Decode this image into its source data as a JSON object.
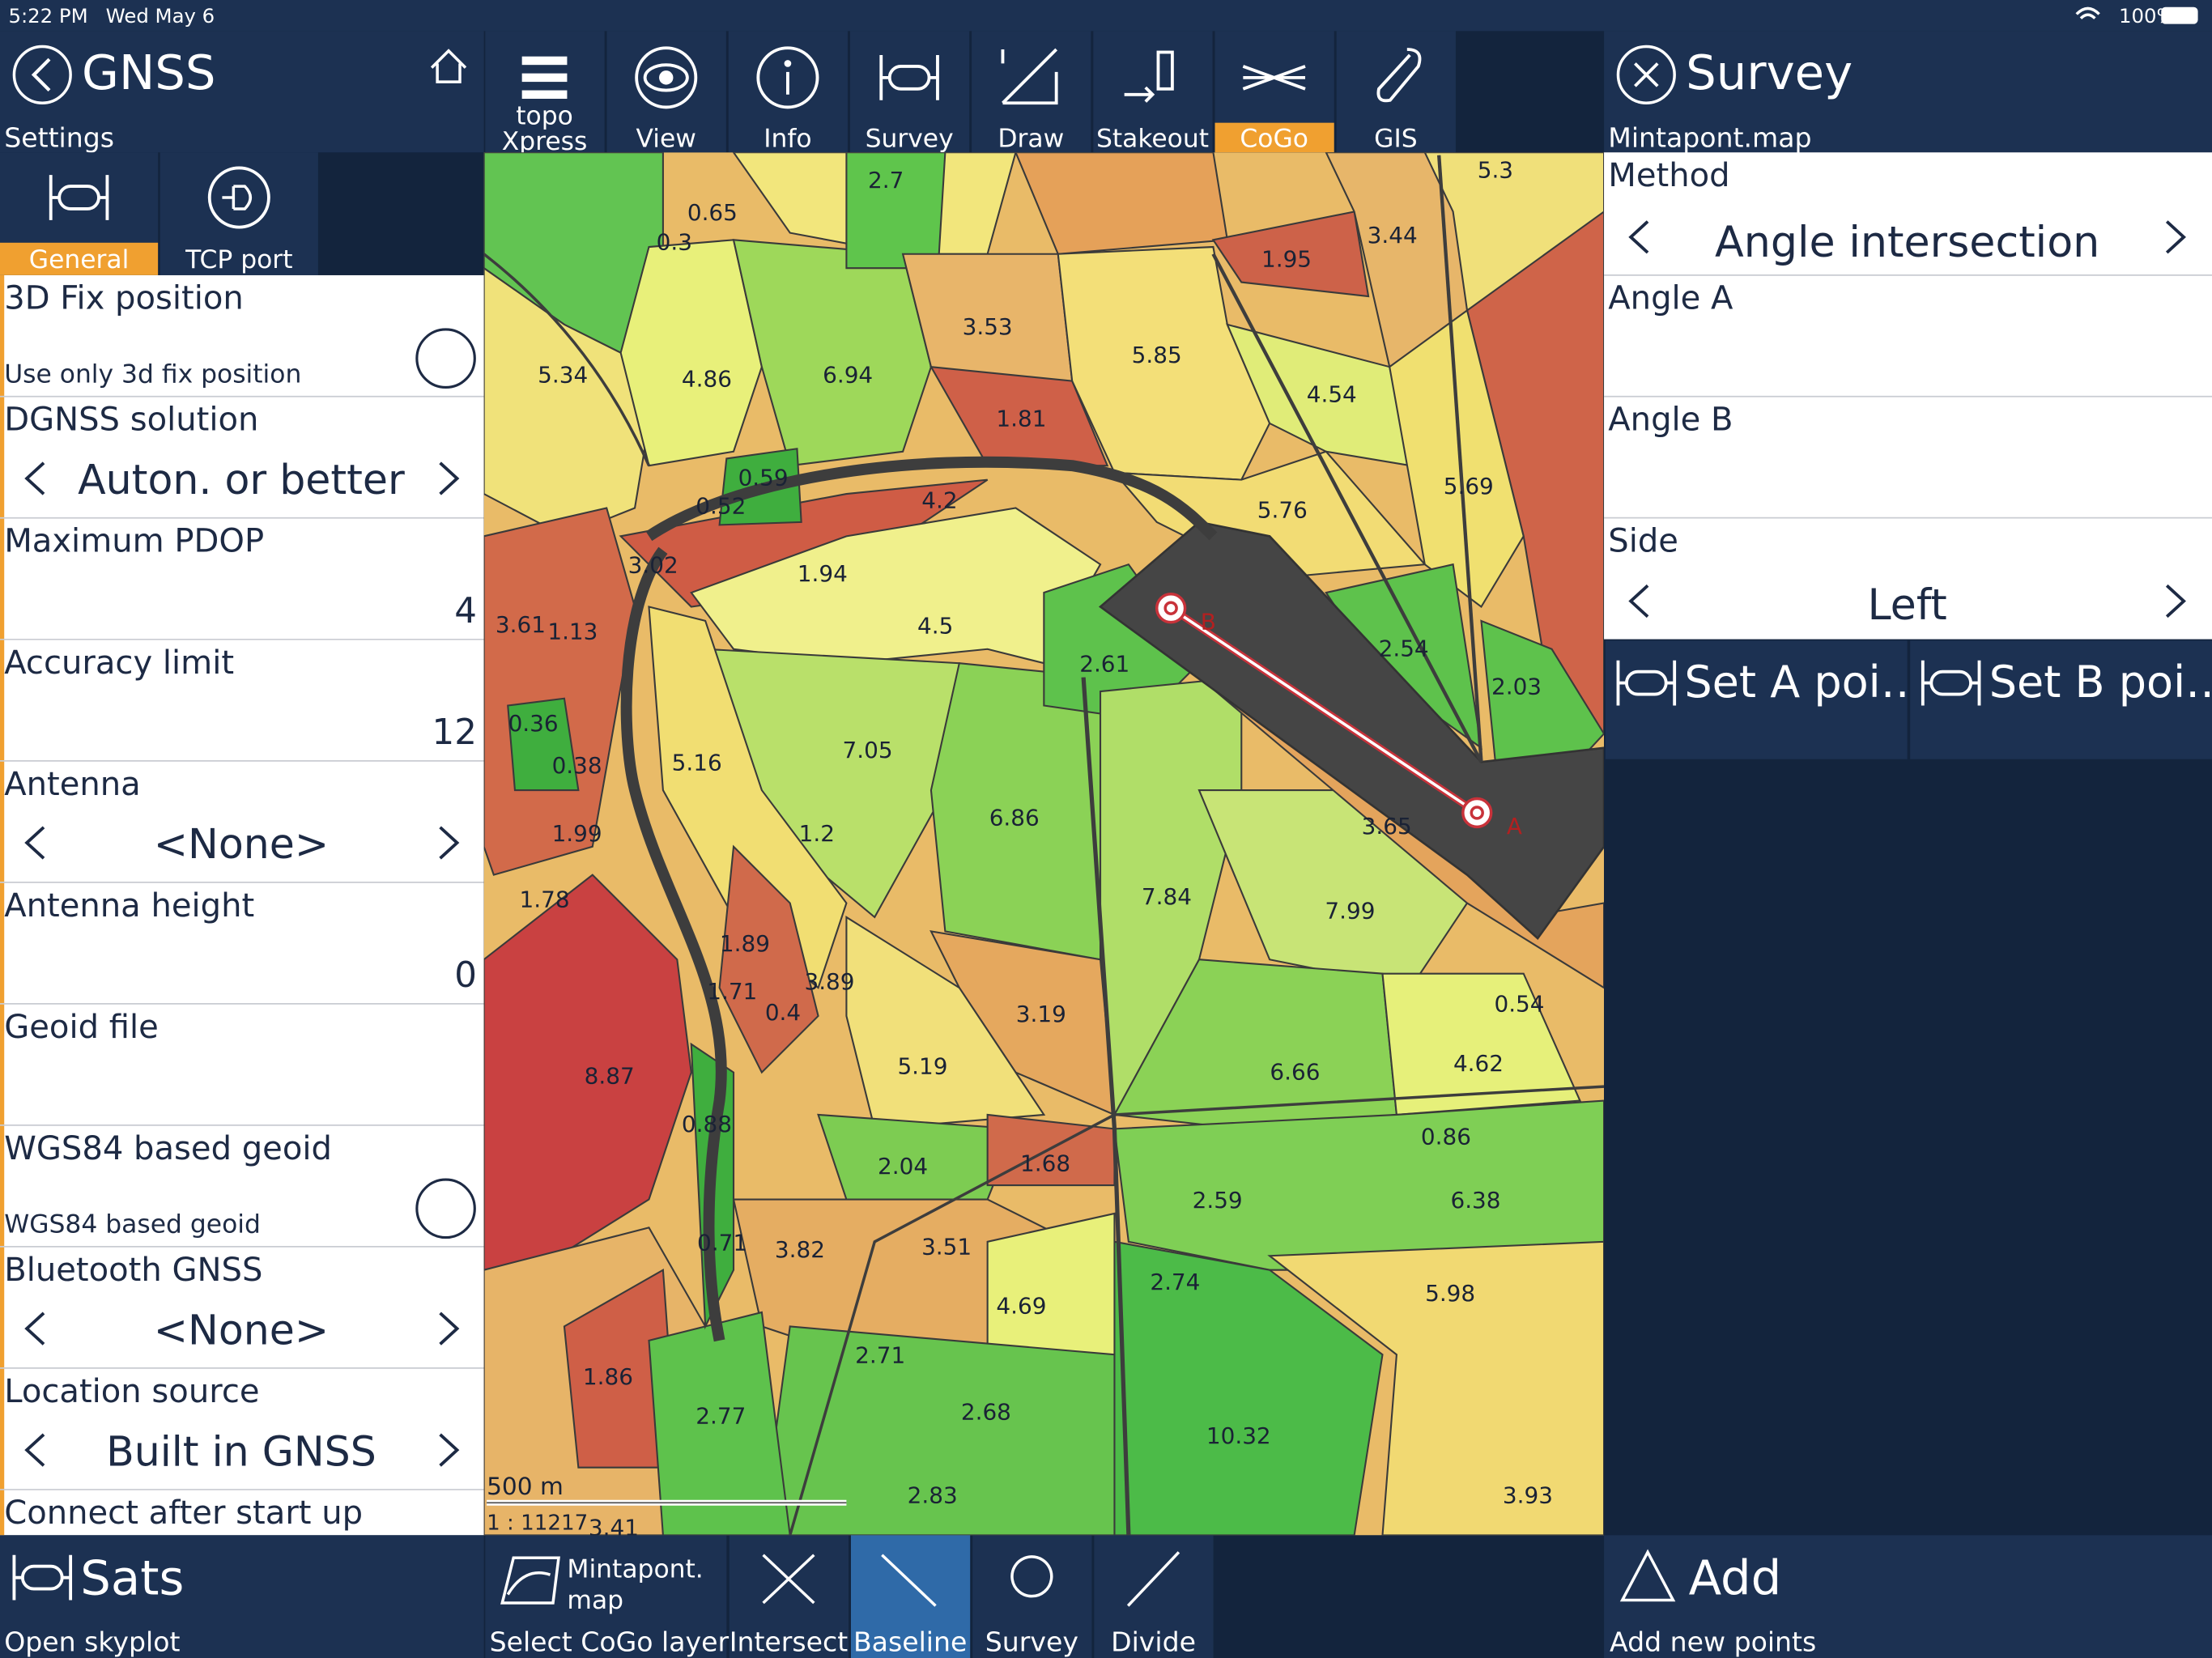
{
  "status_bar": {
    "time": "5:22 PM",
    "date": "Wed May 6",
    "battery": "100%"
  },
  "left_header": {
    "title": "GNSS",
    "subtitle": "Settings"
  },
  "toolbar": [
    {
      "lines": [
        "topo",
        "Xpress"
      ]
    },
    {
      "label": "View"
    },
    {
      "label": "Info"
    },
    {
      "label": "Survey"
    },
    {
      "label": "Draw"
    },
    {
      "label": "Stakeout"
    },
    {
      "label": "CoGo",
      "active": true
    },
    {
      "label": "GIS"
    }
  ],
  "right_header": {
    "title": "Survey",
    "subtitle": "Mintapont.map"
  },
  "tabs": [
    {
      "label": "General",
      "active": true
    },
    {
      "label": "TCP port"
    }
  ],
  "settings": [
    {
      "label": "3D Fix position",
      "description": "Use only 3d fix position",
      "toggle": false
    },
    {
      "label": "DGNSS solution",
      "choice": "Auton. or better"
    },
    {
      "label": "Maximum PDOP",
      "value": 4
    },
    {
      "label": "Accuracy limit",
      "value": 12
    },
    {
      "label": "Antenna",
      "choice": "<None>"
    },
    {
      "label": "Antenna height",
      "value": 0
    },
    {
      "label": "Geoid file"
    },
    {
      "label": "WGS84 based geoid",
      "description": "WGS84 based geoid",
      "toggle": false
    },
    {
      "label": "Bluetooth GNSS",
      "choice": "<None>"
    },
    {
      "label": "Location source",
      "choice": "Built in GNSS"
    },
    {
      "label": "Connect after start up"
    }
  ],
  "map": {
    "parcel_labels": [
      2.7,
      0.65,
      0.3,
      5.3,
      3.44,
      1.95,
      3.53,
      5.85,
      5.34,
      4.86,
      6.94,
      4.54,
      1.81,
      5.69,
      0.59,
      0.52,
      4.2,
      5.76,
      3.02,
      1.94,
      4.5,
      3.61,
      1.13,
      2.61,
      2.54,
      2.03,
      0.36,
      7.05,
      0.38,
      5.16,
      6.86,
      1.2,
      1.99,
      3.65,
      7.84,
      7.99,
      1.78,
      1.89,
      3.89,
      1.71,
      0.4,
      3.19,
      0.54,
      8.87,
      5.19,
      6.66,
      4.62,
      0.88,
      0.86,
      2.04,
      1.68,
      2.59,
      6.38,
      0.71,
      3.82,
      3.51,
      2.74,
      5.98,
      4.69,
      2.71,
      1.86,
      2.68,
      2.77,
      10.32,
      2.83,
      3.93,
      3.41
    ],
    "points": [
      {
        "name": "B"
      },
      {
        "name": "A"
      }
    ],
    "scale_distance": "500 m",
    "scale_ratio": "1 : 11217"
  },
  "cogo": {
    "method_label": "Method",
    "method": "Angle intersection",
    "fields": [
      "Angle A",
      "Angle B"
    ],
    "side_label": "Side",
    "side": "Left",
    "buttons": [
      "Set A poi…",
      "Set B poi…"
    ]
  },
  "bottom_bar": {
    "left": {
      "title": "Sats",
      "subtitle": "Open skyplot"
    },
    "layer": {
      "lines": [
        "Mintapont.",
        "map"
      ],
      "caption": "Select CoGo layer"
    },
    "tools": [
      {
        "label": "Intersect"
      },
      {
        "label": "Baseline",
        "active": true
      },
      {
        "label": "Survey"
      },
      {
        "label": "Divide"
      }
    ],
    "right": {
      "title": "Add",
      "subtitle": "Add new points"
    }
  }
}
